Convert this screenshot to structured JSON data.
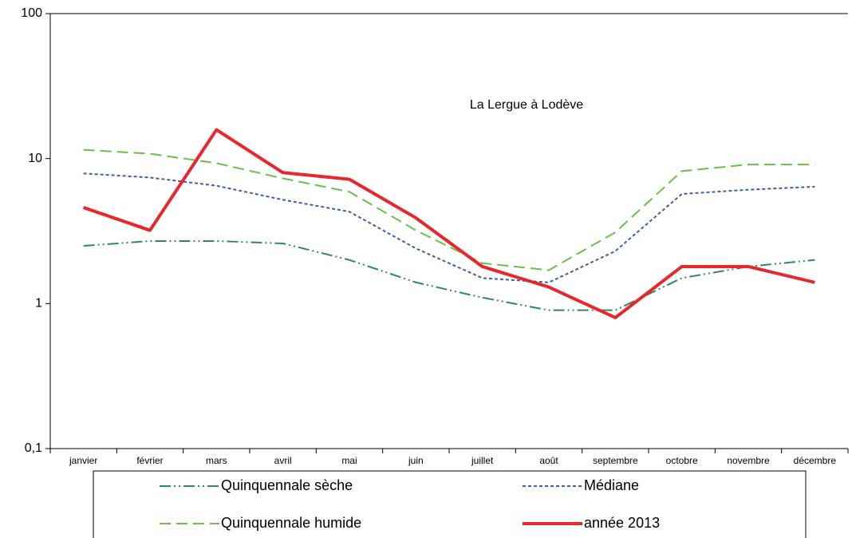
{
  "chart_data": {
    "type": "line",
    "title": "La Lergue à Lodève",
    "categories": [
      "janvier",
      "février",
      "mars",
      "avril",
      "mai",
      "juin",
      "juillet",
      "août",
      "septembre",
      "octobre",
      "novembre",
      "décembre"
    ],
    "series": [
      {
        "name": "Quinquennale sèche",
        "color": "#2e8b57",
        "dash": "14,4,2,4,2,4",
        "width": 2,
        "values": [
          2.5,
          2.7,
          2.7,
          2.6,
          2.0,
          1.4,
          1.1,
          0.9,
          0.9,
          1.5,
          1.8,
          2.0
        ]
      },
      {
        "name": "Médiane",
        "color": "#3b5fa8",
        "dash": "4,3",
        "width": 2,
        "values": [
          7.9,
          7.4,
          6.5,
          5.2,
          4.3,
          2.4,
          1.5,
          1.4,
          2.3,
          5.7,
          6.1,
          6.4
        ]
      },
      {
        "name": "Quinquennale humide",
        "color": "#6abf4b",
        "dash": "14,7",
        "width": 2,
        "values": [
          11.5,
          10.8,
          9.3,
          7.3,
          5.9,
          3.2,
          1.9,
          1.7,
          3.1,
          8.2,
          9.1,
          9.1
        ]
      },
      {
        "name": "année 2013",
        "color": "#e8262b",
        "dash": "none",
        "width": 4,
        "values": [
          4.6,
          3.2,
          15.8,
          8.0,
          7.2,
          3.9,
          1.8,
          1.3,
          0.8,
          1.8,
          1.8,
          1.4
        ]
      }
    ],
    "ylim": [
      0.1,
      100
    ],
    "yticks": [
      {
        "value": 0.1,
        "label": "0,1"
      },
      1,
      10,
      100
    ],
    "log_scale": true,
    "grid": false,
    "legend": "bottom"
  }
}
